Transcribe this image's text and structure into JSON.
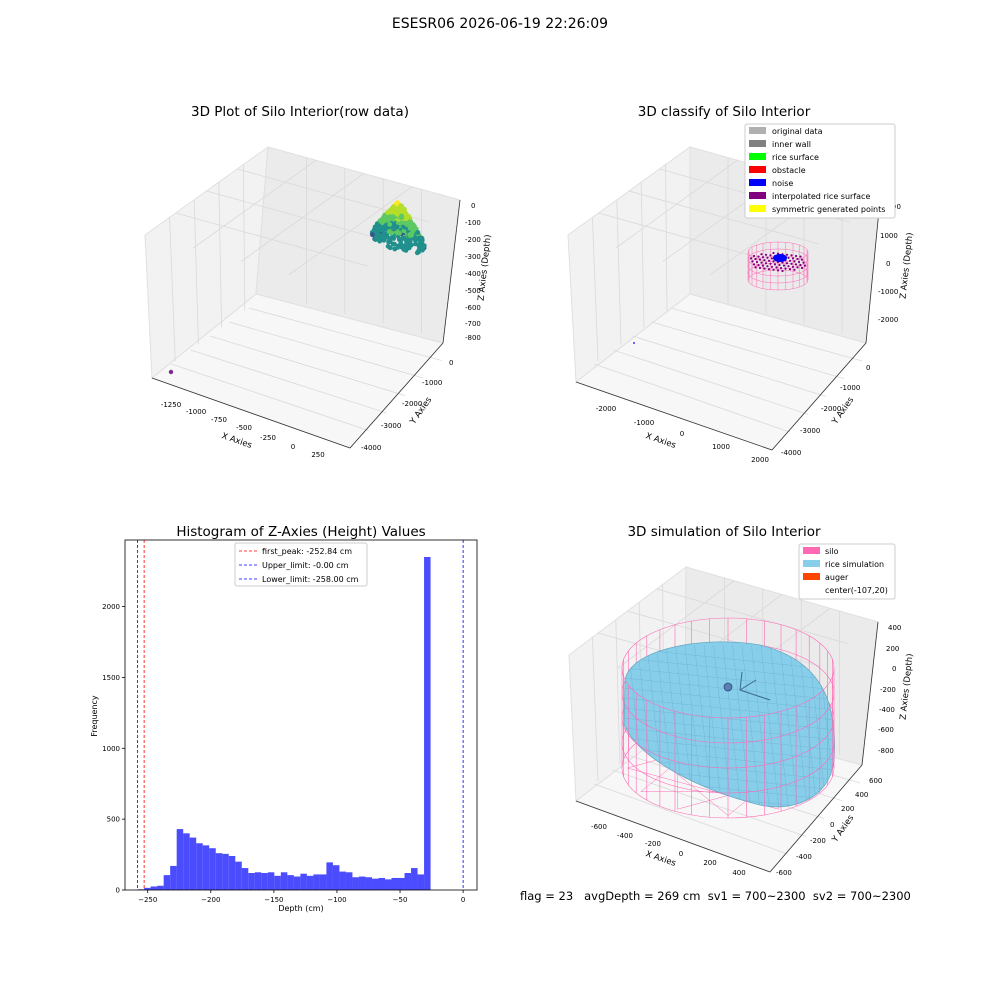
{
  "figure": {
    "suptitle": "ESESR06 2026-06-19 22:26:09",
    "footer": "flag = 23   avgDepth = 269 cm  sv1 = 700~2300  sv2 = 700~2300"
  },
  "chart_data": [
    {
      "type": "scatter",
      "projection": "3d",
      "title": "3D Plot of Silo Interior(row data)",
      "xlabel": "X Axies",
      "ylabel": "Y Axies",
      "zlabel": "Z Axies (Depth)",
      "x_ticks": [
        "-1250",
        "-1000",
        "-750",
        "-500",
        "-250",
        "0",
        "250"
      ],
      "y_ticks": [
        "0",
        "-1000",
        "-2000",
        "-3000",
        "-4000"
      ],
      "z_ticks": [
        "0",
        "-100",
        "-200",
        "-300",
        "-400",
        "-500",
        "-600",
        "-700",
        "-800"
      ],
      "xlim": [
        -1400,
        350
      ],
      "ylim": [
        -4200,
        400
      ],
      "zlim": [
        -850,
        30
      ],
      "colormap": "viridis",
      "clusters": [
        {
          "name": "",
          "x_range": [
            -200,
            250
          ],
          "y_range": [
            -300,
            300
          ],
          "z_range": [
            -260,
            0
          ]
        },
        {
          "name": "",
          "x": -1300,
          "y": -4000,
          "z": -800,
          "color": "#7b2a8f"
        }
      ]
    },
    {
      "type": "scatter",
      "projection": "3d",
      "title": "3D classify of Silo Interior",
      "xlabel": "X Axies",
      "ylabel": "Y Axies",
      "zlabel": "Z Axies (Depth)",
      "x_ticks": [
        "-2000",
        "-1000",
        "0",
        "1000",
        "2000"
      ],
      "y_ticks": [
        "0",
        "-1000",
        "-2000",
        "-3000",
        "-4000"
      ],
      "z_ticks": [
        "1000",
        "0",
        "-1000",
        "-2000"
      ],
      "z_partial_tick": "00",
      "legend_position": "upper right",
      "legend": [
        {
          "label": "original data",
          "color": "#b0b0b0"
        },
        {
          "label": "inner wall",
          "color": "#808080"
        },
        {
          "label": "rice surface",
          "color": "#00ff00"
        },
        {
          "label": "obstacle",
          "color": "#ff0000"
        },
        {
          "label": "noise",
          "color": "#0000ff"
        },
        {
          "label": "interpolated rice surface",
          "color": "#800080"
        },
        {
          "label": "symmetric generated points",
          "color": "#ffff00"
        }
      ]
    },
    {
      "type": "bar",
      "title": "Histogram of Z-Axies (Height) Values",
      "xlabel": "Depth (cm)",
      "ylabel": "Frequency",
      "x_ticks": [
        -250,
        -200,
        -150,
        -100,
        -50,
        0
      ],
      "y_ticks": [
        0,
        500,
        1000,
        1500,
        2000
      ],
      "xlim": [
        -268,
        11
      ],
      "ylim": [
        0,
        2470
      ],
      "bar_color": "#0000ff",
      "bin_start": -258,
      "bin_width": 5.16,
      "counts": [
        5,
        15,
        25,
        30,
        105,
        170,
        430,
        400,
        370,
        330,
        315,
        295,
        260,
        255,
        240,
        200,
        155,
        120,
        125,
        120,
        125,
        100,
        125,
        105,
        95,
        115,
        100,
        110,
        110,
        195,
        175,
        130,
        125,
        90,
        95,
        90,
        80,
        85,
        75,
        85,
        85,
        120,
        155,
        110,
        2350
      ],
      "vlines": [
        {
          "label": "first_peak: -252.84 cm",
          "x": -252.84,
          "color": "#ff0000"
        },
        {
          "label": "Upper_limit: -0.00 cm",
          "x": 0,
          "color": "#0000ff"
        },
        {
          "label": "Lower_limit: -258.00 cm",
          "x": -258,
          "color": "#0000ff"
        }
      ],
      "legend_position": "upper center"
    },
    {
      "type": "surface",
      "projection": "3d",
      "title": "3D simulation of Silo Interior",
      "xlabel": "X Axies",
      "ylabel": "Y Axies",
      "zlabel": "Z Axies (Depth)",
      "x_ticks": [
        "-600",
        "-400",
        "-200",
        "0",
        "200",
        "400"
      ],
      "y_ticks": [
        "600",
        "400",
        "200",
        "0",
        "-200",
        "-400",
        "-600"
      ],
      "z_ticks": [
        "400",
        "200",
        "0",
        "-200",
        "-400",
        "-600",
        "-800"
      ],
      "legend_position": "upper right",
      "legend": [
        {
          "label": "silo",
          "color": "#ff69b4"
        },
        {
          "label": "rice simulation",
          "color": "#87ceeb"
        },
        {
          "label": "auger",
          "color": "#ff4500"
        },
        {
          "label": "center(-107,20)",
          "color": ""
        }
      ]
    }
  ]
}
